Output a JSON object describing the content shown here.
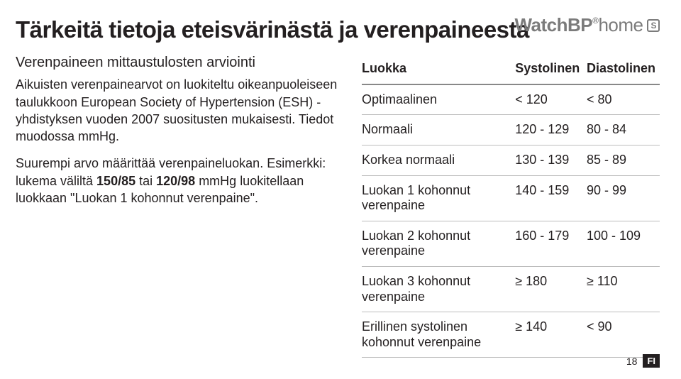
{
  "brand": {
    "main": "WatchBP",
    "sup": "®",
    "light": "home",
    "box": "S"
  },
  "title": "Tärkeitä tietoja eteisvärinästä ja verenpaineesta",
  "subtitle": "Verenpaineen mittaustulosten arviointi",
  "para1_a": "Aikuisten verenpainearvot on luokiteltu oikeanpuoleiseen taulukkoon European Society of Hypertension (ESH) -yhdistyksen vuoden 2007 suositusten mukaisesti. Tiedot muodossa mmHg.",
  "para2_a": "Suurempi arvo määrittää verenpaineluokan. Esimerkki: lukema väliltä ",
  "para2_bold1": "150/85",
  "para2_b": " tai ",
  "para2_bold2": "120/98",
  "para2_c": " mmHg luokitellaan luokkaan \"Luokan 1 kohonnut verenpaine\".",
  "table": {
    "headers": [
      "Luokka",
      "Systolinen",
      "Diastolinen"
    ],
    "rows": [
      [
        "Optimaalinen",
        "< 120",
        "< 80"
      ],
      [
        "Normaali",
        "120 - 129",
        "80 - 84"
      ],
      [
        "Korkea normaali",
        "130 - 139",
        "85 - 89"
      ],
      [
        "Luokan 1 kohonnut verenpaine",
        "140 - 159",
        "90 - 99"
      ],
      [
        "Luokan 2 kohonnut verenpaine",
        "160 - 179",
        "100 - 109"
      ],
      [
        "Luokan 3 kohonnut verenpaine",
        "≥ 180",
        "≥ 110"
      ],
      [
        "Erillinen systolinen kohonnut verenpaine",
        "≥ 140",
        "< 90"
      ]
    ]
  },
  "footer": {
    "page": "18",
    "lang": "FI"
  }
}
